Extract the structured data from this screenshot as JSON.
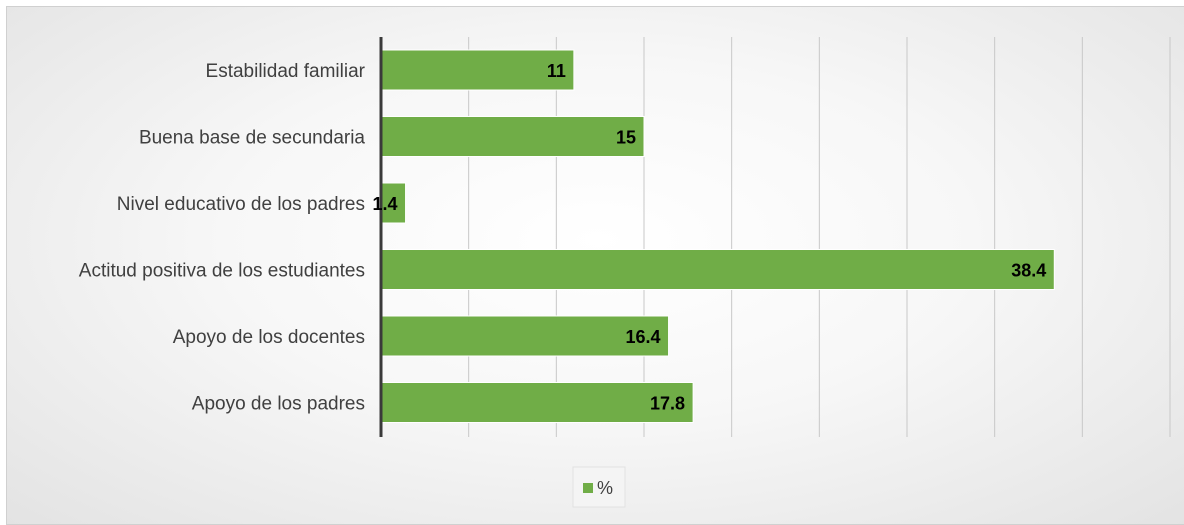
{
  "chart_data": {
    "type": "bar",
    "orientation": "horizontal",
    "categories": [
      "Estabilidad familiar",
      "Buena base de secundaria",
      "Nivel educativo de los padres",
      "Actitud positiva de los estudiantes",
      "Apoyo de los docentes",
      "Apoyo de los padres"
    ],
    "series": [
      {
        "name": "%",
        "values": [
          11,
          15,
          1.4,
          38.4,
          16.4,
          17.8
        ]
      }
    ],
    "xlim": [
      0,
      45
    ],
    "xtick_step": 5,
    "x_tick_labels_shown": false,
    "grid": "vertical",
    "legend": "bottom-center",
    "bar_color": "#70ad47",
    "grid_color": "#c8c8c8",
    "axis_color": "#3a3a3a"
  }
}
